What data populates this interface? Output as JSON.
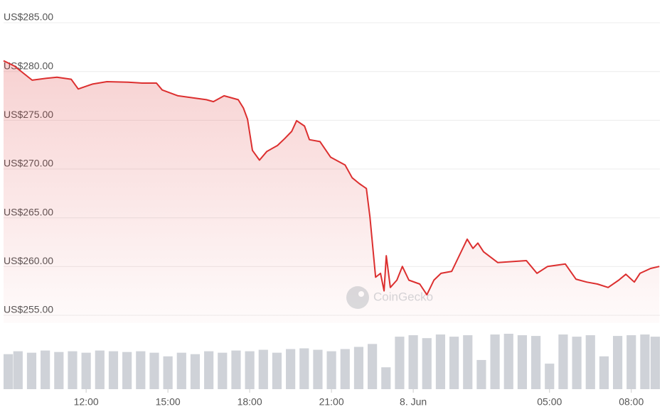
{
  "chart_data": {
    "type": "line",
    "watermark": "CoinGecko",
    "xlim": [
      8.97,
      33.05
    ],
    "xticks": [
      {
        "value": 12,
        "label": "12:00"
      },
      {
        "value": 15,
        "label": "15:00"
      },
      {
        "value": 18,
        "label": "18:00"
      },
      {
        "value": 21,
        "label": "21:00"
      },
      {
        "value": 24,
        "label": "8. Jun"
      },
      {
        "value": 29,
        "label": "05:00"
      },
      {
        "value": 32,
        "label": "08:00"
      }
    ],
    "ylim": [
      253.7,
      286.4
    ],
    "yticks": [
      {
        "value": 255,
        "label": "US$255.00"
      },
      {
        "value": 260,
        "label": "US$260.00"
      },
      {
        "value": 265,
        "label": "US$265.00"
      },
      {
        "value": 270,
        "label": "US$270.00"
      },
      {
        "value": 275,
        "label": "US$275.00"
      },
      {
        "value": 280,
        "label": "US$280.00"
      },
      {
        "value": 285,
        "label": "US$285.00"
      }
    ],
    "grid": true,
    "series": [
      {
        "type": "line",
        "color": "#dc2f2f",
        "x": [
          8.97,
          9.37,
          10.02,
          10.54,
          10.93,
          11.45,
          11.71,
          12.23,
          12.76,
          13.54,
          14.06,
          14.58,
          14.79,
          15.37,
          15.89,
          16.41,
          16.67,
          17.06,
          17.58,
          17.77,
          17.92,
          18.1,
          18.36,
          18.63,
          19.02,
          19.28,
          19.54,
          19.72,
          20.01,
          20.19,
          20.58,
          20.97,
          21.5,
          21.76,
          22.02,
          22.28,
          22.41,
          22.62,
          22.8,
          22.93,
          23.01,
          23.16,
          23.4,
          23.6,
          23.84,
          24.24,
          24.5,
          24.76,
          25.02,
          25.41,
          25.67,
          25.98,
          26.19,
          26.37,
          26.58,
          27.1,
          27.62,
          28.15,
          28.54,
          28.93,
          29.58,
          29.97,
          30.36,
          30.76,
          31.15,
          31.54,
          31.8,
          32.11,
          32.32,
          32.71,
          33.03
        ],
        "values": [
          280.6,
          280.05,
          278.6,
          278.8,
          278.9,
          278.7,
          277.7,
          278.2,
          278.45,
          278.4,
          278.3,
          278.3,
          277.6,
          277.0,
          276.8,
          276.6,
          276.4,
          277.0,
          276.6,
          275.75,
          274.6,
          271.4,
          270.4,
          271.3,
          271.9,
          272.6,
          273.35,
          274.45,
          273.9,
          272.5,
          272.3,
          270.7,
          269.9,
          268.6,
          268.0,
          267.5,
          264.6,
          258.4,
          258.8,
          257.0,
          260.6,
          257.35,
          258.1,
          259.5,
          258.1,
          257.7,
          256.6,
          258.1,
          258.8,
          259.0,
          260.5,
          262.3,
          261.35,
          261.9,
          261.0,
          259.9,
          260.0,
          260.1,
          258.8,
          259.5,
          259.75,
          258.2,
          257.9,
          257.7,
          257.35,
          258.1,
          258.7,
          257.9,
          258.8,
          259.3,
          259.5
        ]
      },
      {
        "type": "bar",
        "color": "#cfd2d8",
        "x": [
          9,
          9.5,
          10,
          10.5,
          11,
          11.5,
          12,
          12.5,
          13,
          13.5,
          14,
          14.5,
          15,
          15.5,
          16,
          16.5,
          17,
          17.5,
          18,
          18.5,
          19,
          19.5,
          20,
          20.5,
          21,
          21.5,
          22,
          22.5,
          23,
          23.5,
          24,
          24.5,
          25,
          25.5,
          26,
          26.5,
          27,
          27.5,
          28,
          28.5,
          29,
          29.5,
          30,
          30.5,
          31,
          31.5,
          32,
          32.5,
          33
        ],
        "values": [
          48,
          52,
          50,
          53,
          51,
          52,
          50,
          53,
          52,
          51,
          52,
          50,
          45,
          50,
          48,
          52,
          50,
          53,
          52,
          54,
          50,
          55,
          56,
          54,
          52,
          55,
          58,
          62,
          30,
          72,
          74,
          70,
          75,
          72,
          74,
          40,
          75,
          76,
          74,
          73,
          35,
          75,
          72,
          74,
          45,
          73,
          74,
          75,
          72
        ]
      }
    ]
  }
}
